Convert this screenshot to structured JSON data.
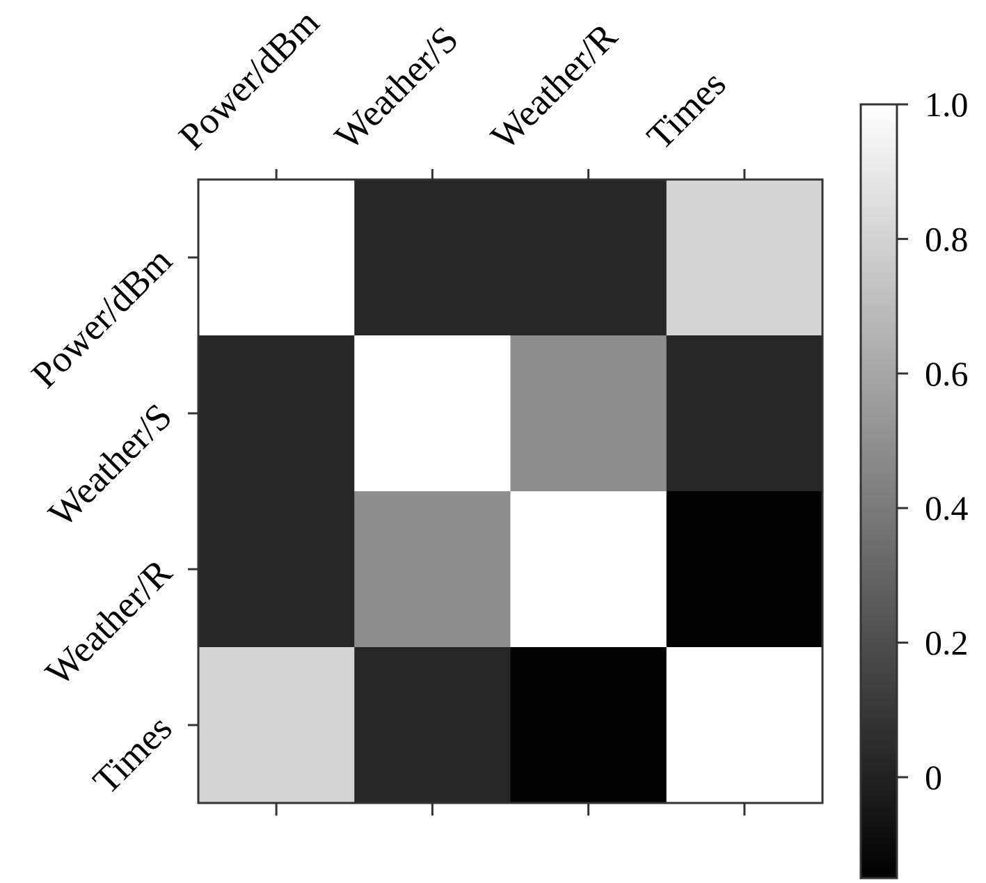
{
  "chart_data": {
    "type": "heatmap",
    "title": "",
    "x_labels": [
      "Power/dBm",
      "Weather/S",
      "Weather/R",
      "Times"
    ],
    "y_labels": [
      "Power/dBm",
      "Weather/S",
      "Weather/R",
      "Times"
    ],
    "values": [
      [
        1.0,
        0.02,
        0.02,
        0.81
      ],
      [
        0.02,
        1.0,
        0.49,
        0.02
      ],
      [
        0.02,
        0.49,
        1.0,
        -0.14
      ],
      [
        0.81,
        0.02,
        -0.14,
        1.0
      ]
    ],
    "colormap": "gray",
    "color_range": [
      -0.15,
      1.0
    ],
    "colorbar": {
      "ticks": [
        0,
        0.2,
        0.4,
        0.6,
        0.8,
        1.0
      ],
      "tick_labels": [
        "0",
        "0.2",
        "0.4",
        "0.6",
        "0.8",
        "1.0"
      ]
    },
    "x_tick_position": "top",
    "x_label_rotation": 45,
    "y_label_rotation": 45,
    "grid": false
  }
}
